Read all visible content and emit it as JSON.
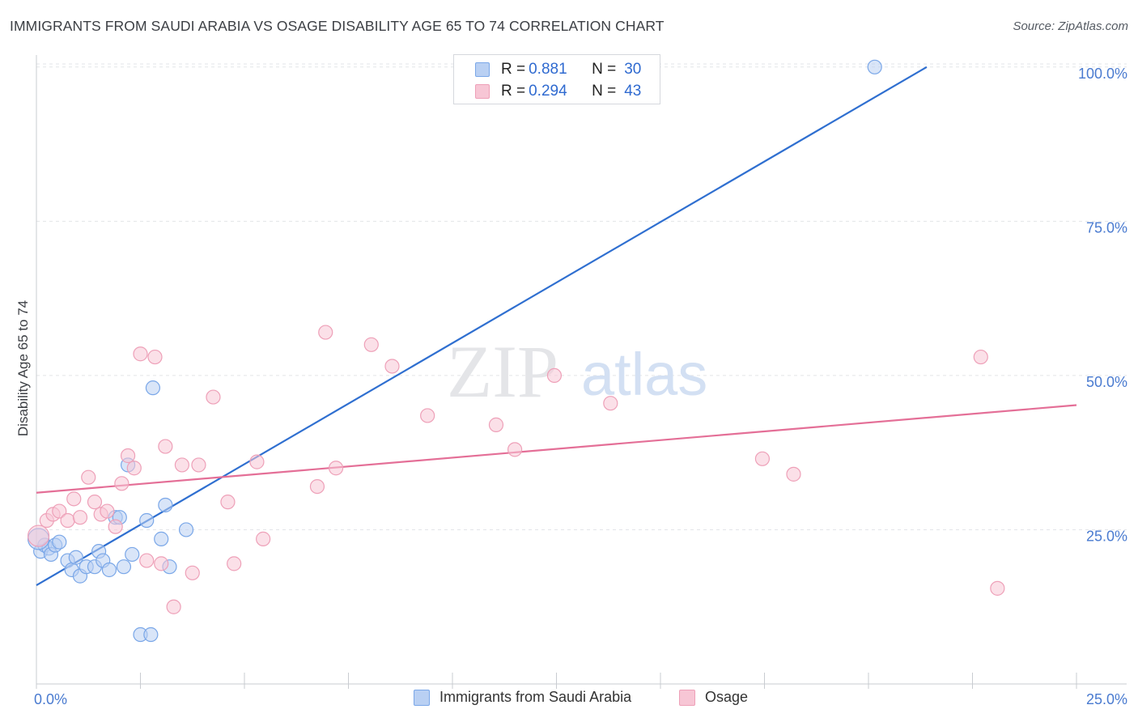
{
  "chart_data": {
    "type": "scatter",
    "title": "IMMIGRANTS FROM SAUDI ARABIA VS OSAGE DISABILITY AGE 65 TO 74 CORRELATION CHART",
    "source": "Source: ZipAtlas.com",
    "ylabel": "Disability Age 65 to 74",
    "xlabel": "",
    "xlim": [
      0,
      25
    ],
    "ylim": [
      0,
      105
    ],
    "x_tick_labels": [
      "0.0%",
      "25.0%"
    ],
    "y_tick_labels": [
      "25.0%",
      "50.0%",
      "75.0%",
      "100.0%"
    ],
    "y_ticks": [
      25,
      50,
      75,
      100
    ],
    "watermark": "ZIPatlas",
    "legend": {
      "r_label": "R =",
      "n_label": "N =",
      "rows": [
        {
          "r": "0.881",
          "n": "30"
        },
        {
          "r": "0.294",
          "n": "43"
        }
      ]
    },
    "series": [
      {
        "name": "Immigrants from Saudi Arabia",
        "color": "#7aa7e8",
        "fill": "#b9d0f3",
        "trend": {
          "x": [
            0,
            21.4
          ],
          "y": [
            16.0,
            100.0
          ],
          "color": "#2f6fd0"
        },
        "points": [
          [
            0.1,
            21.5
          ],
          [
            0.2,
            22.5
          ],
          [
            0.3,
            22
          ],
          [
            0.35,
            21
          ],
          [
            0.45,
            22.5
          ],
          [
            0.55,
            23
          ],
          [
            0.75,
            20
          ],
          [
            0.85,
            18.5
          ],
          [
            0.95,
            20.5
          ],
          [
            1.05,
            17.5
          ],
          [
            1.2,
            19
          ],
          [
            1.4,
            19
          ],
          [
            1.5,
            21.5
          ],
          [
            1.6,
            20
          ],
          [
            1.75,
            18.5
          ],
          [
            1.9,
            27
          ],
          [
            2.0,
            27
          ],
          [
            2.1,
            19
          ],
          [
            2.2,
            35.5
          ],
          [
            2.3,
            21
          ],
          [
            2.5,
            8
          ],
          [
            2.65,
            26.5
          ],
          [
            2.75,
            8
          ],
          [
            2.8,
            48
          ],
          [
            3.0,
            23.5
          ],
          [
            3.1,
            29
          ],
          [
            3.2,
            19
          ],
          [
            3.6,
            25
          ],
          [
            20.15,
            100
          ],
          [
            0.05,
            23.5
          ]
        ]
      },
      {
        "name": "Osage",
        "color": "#eea0b8",
        "fill": "#f7c6d5",
        "trend": {
          "x": [
            0,
            25
          ],
          "y": [
            31.0,
            45.2
          ],
          "color": "#e46f97"
        },
        "points": [
          [
            0.05,
            24
          ],
          [
            0.25,
            26.5
          ],
          [
            0.4,
            27.5
          ],
          [
            0.55,
            28
          ],
          [
            0.75,
            26.5
          ],
          [
            0.9,
            30
          ],
          [
            1.05,
            27
          ],
          [
            1.25,
            33.5
          ],
          [
            1.4,
            29.5
          ],
          [
            1.55,
            27.5
          ],
          [
            1.7,
            28
          ],
          [
            1.9,
            25.5
          ],
          [
            2.05,
            32.5
          ],
          [
            2.2,
            37
          ],
          [
            2.35,
            35
          ],
          [
            2.5,
            53.5
          ],
          [
            2.65,
            20
          ],
          [
            2.85,
            53
          ],
          [
            3.0,
            19.5
          ],
          [
            3.1,
            38.5
          ],
          [
            3.3,
            12.5
          ],
          [
            3.5,
            35.5
          ],
          [
            3.75,
            18
          ],
          [
            3.9,
            35.5
          ],
          [
            4.25,
            46.5
          ],
          [
            4.6,
            29.5
          ],
          [
            4.75,
            19.5
          ],
          [
            5.3,
            36
          ],
          [
            5.45,
            23.5
          ],
          [
            6.75,
            32
          ],
          [
            6.95,
            57
          ],
          [
            7.2,
            35
          ],
          [
            8.05,
            55
          ],
          [
            8.55,
            51.5
          ],
          [
            9.4,
            43.5
          ],
          [
            11.05,
            42
          ],
          [
            11.5,
            38
          ],
          [
            12.45,
            50
          ],
          [
            13.8,
            45.5
          ],
          [
            17.45,
            36.5
          ],
          [
            18.2,
            34
          ],
          [
            22.7,
            53
          ],
          [
            23.1,
            15.5
          ]
        ]
      }
    ]
  }
}
